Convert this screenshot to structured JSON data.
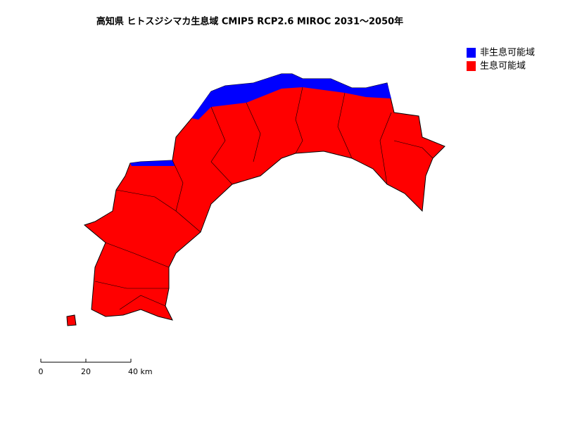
{
  "title": "高知県 ヒトスジシマカ生息域 CMIP5 RCP2.6 MIROC 2031～2050年",
  "legend": [
    {
      "label": "非生息可能域",
      "color": "#0000ff"
    },
    {
      "label": "生息可能域",
      "color": "#ff0000"
    }
  ],
  "scale_bar": {
    "ticks": [
      0,
      20,
      {
        "value": 40,
        "label": "40 km"
      }
    ]
  }
}
